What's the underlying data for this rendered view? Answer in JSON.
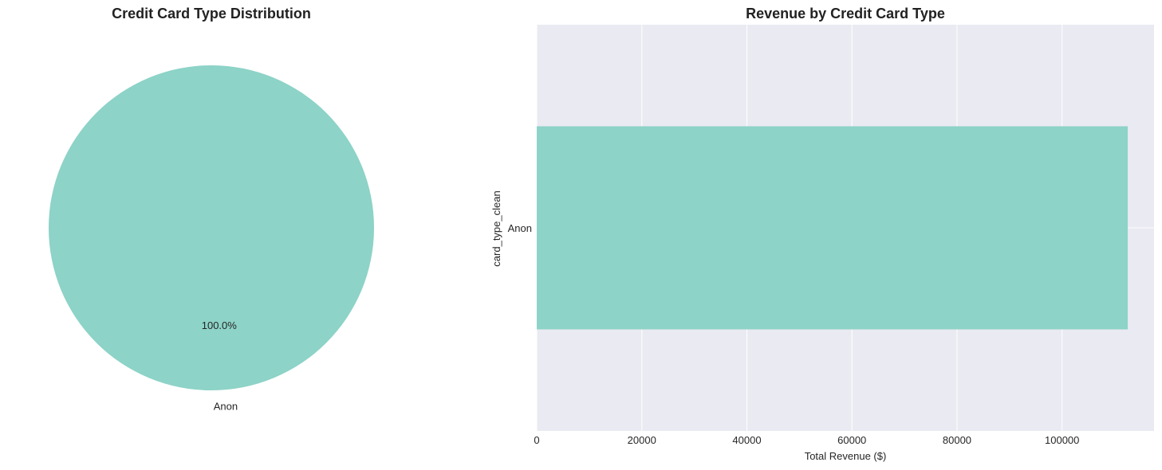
{
  "chart_data": [
    {
      "type": "pie",
      "title": "Credit Card Type Distribution",
      "slices": [
        {
          "label": "Anon",
          "value": 100.0,
          "pct_label": "100.0%",
          "color": "#8dd3c7"
        }
      ]
    },
    {
      "type": "bar",
      "orientation": "horizontal",
      "title": "Revenue by Credit Card Type",
      "categories": [
        "Anon"
      ],
      "values": [
        112500
      ],
      "xlabel": "Total Revenue ($)",
      "ylabel": "card_type_clean",
      "xlim": [
        0,
        117500
      ],
      "xticks": [
        0,
        20000,
        40000,
        60000,
        80000,
        100000
      ],
      "xtick_labels": [
        "0",
        "20000",
        "40000",
        "60000",
        "80000",
        "100000"
      ],
      "grid": true,
      "bar_color": "#8dd3c7",
      "background": "#eaeaf2"
    }
  ]
}
